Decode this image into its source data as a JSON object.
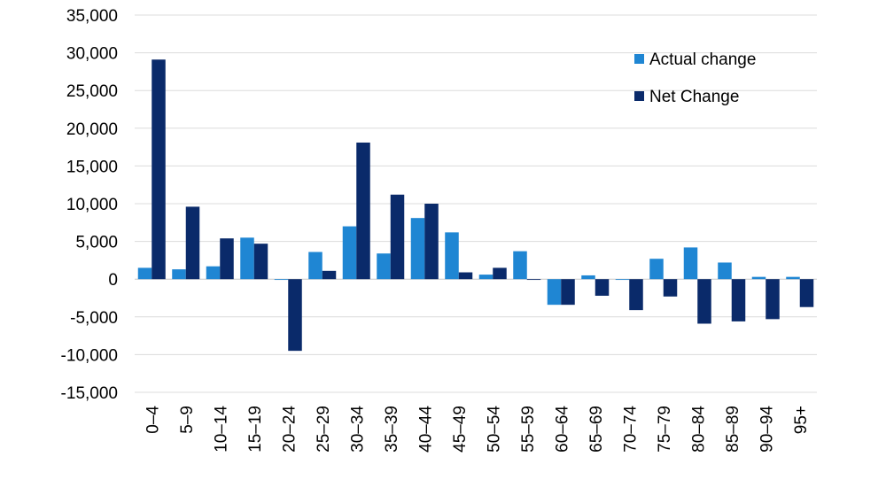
{
  "chart_data": {
    "type": "bar",
    "categories": [
      "0–4",
      "5–9",
      "10–14",
      "15–19",
      "20–24",
      "25–29",
      "30–34",
      "35–39",
      "40–44",
      "45–49",
      "50–54",
      "55–59",
      "60–64",
      "65–69",
      "70–74",
      "75–79",
      "80–84",
      "85–89",
      "90–94",
      "95+"
    ],
    "series": [
      {
        "name": "Actual change",
        "color": "#1f86d3",
        "values": [
          1500,
          1300,
          1700,
          5500,
          -100,
          3600,
          7000,
          3400,
          8100,
          6200,
          600,
          3700,
          -3400,
          500,
          -100,
          2700,
          4200,
          2200,
          300,
          300
        ]
      },
      {
        "name": "Net Change",
        "color": "#0a2a6a",
        "values": [
          29100,
          9600,
          5400,
          4700,
          -9500,
          1100,
          18100,
          11200,
          10000,
          900,
          1500,
          -100,
          -3400,
          -2200,
          -4100,
          -2300,
          -5900,
          -5600,
          -5300,
          -3700
        ]
      }
    ],
    "y_ticks": [
      -15000,
      -10000,
      -5000,
      0,
      5000,
      10000,
      15000,
      20000,
      25000,
      30000,
      35000
    ],
    "y_tick_labels": [
      "-15,000",
      "-10,000",
      "-5,000",
      "0",
      "5,000",
      "10,000",
      "15,000",
      "20,000",
      "25,000",
      "30,000",
      "35,000"
    ],
    "ylim": [
      -15000,
      35000
    ],
    "grid": true,
    "legend_position": "top-right",
    "title": "",
    "xlabel": "",
    "ylabel": ""
  }
}
